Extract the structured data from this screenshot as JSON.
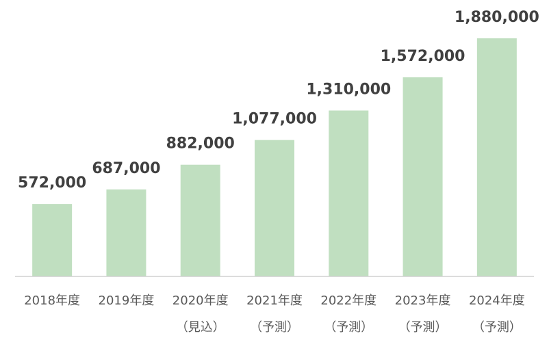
{
  "chart_data": {
    "type": "bar",
    "categories": [
      "2018年度",
      "2019年度",
      "2020年度\n（見込）",
      "2021年度\n（予測）",
      "2022年度\n（予測）",
      "2023年度\n（予測）",
      "2024年度\n（予測）"
    ],
    "values": [
      572000,
      687000,
      882000,
      1077000,
      1310000,
      1572000,
      1880000
    ],
    "value_labels": [
      "572,000",
      "687,000",
      "882,000",
      "1,077,000",
      "1,310,000",
      "1,572,000",
      "1,880,000"
    ],
    "color": "#c0dfc0",
    "ylim": [
      0,
      1880000
    ]
  }
}
